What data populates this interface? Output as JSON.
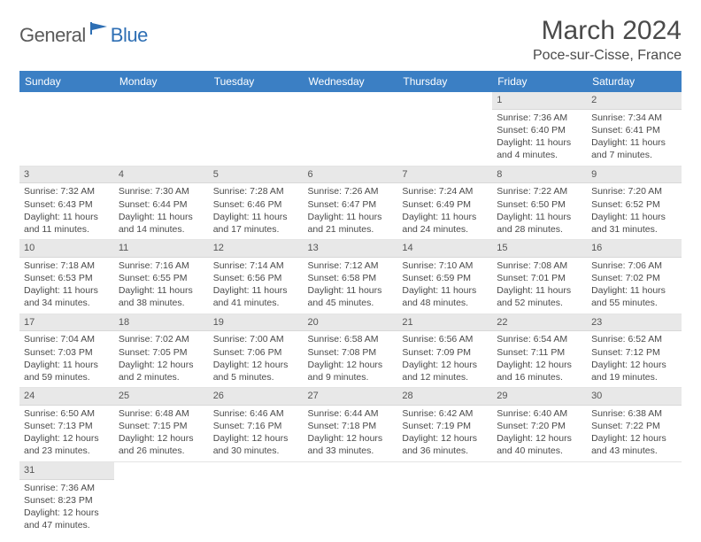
{
  "brand": {
    "part1": "General",
    "part2": "Blue",
    "icon_color": "#2e6fb4"
  },
  "title": "March 2024",
  "location": "Poce-sur-Cisse, France",
  "colors": {
    "header_bg": "#3b7fc4",
    "header_text": "#ffffff",
    "daynum_bg": "#e8e8e8",
    "text": "#4a4a4a",
    "page_bg": "#ffffff"
  },
  "typography": {
    "title_fontsize": 30,
    "location_fontsize": 16,
    "dayhead_fontsize": 12,
    "cell_fontsize": 10.5
  },
  "day_headers": [
    "Sunday",
    "Monday",
    "Tuesday",
    "Wednesday",
    "Thursday",
    "Friday",
    "Saturday"
  ],
  "weeks": [
    [
      null,
      null,
      null,
      null,
      null,
      {
        "n": "1",
        "sr": "Sunrise: 7:36 AM",
        "ss": "Sunset: 6:40 PM",
        "dl": "Daylight: 11 hours and 4 minutes."
      },
      {
        "n": "2",
        "sr": "Sunrise: 7:34 AM",
        "ss": "Sunset: 6:41 PM",
        "dl": "Daylight: 11 hours and 7 minutes."
      }
    ],
    [
      {
        "n": "3",
        "sr": "Sunrise: 7:32 AM",
        "ss": "Sunset: 6:43 PM",
        "dl": "Daylight: 11 hours and 11 minutes."
      },
      {
        "n": "4",
        "sr": "Sunrise: 7:30 AM",
        "ss": "Sunset: 6:44 PM",
        "dl": "Daylight: 11 hours and 14 minutes."
      },
      {
        "n": "5",
        "sr": "Sunrise: 7:28 AM",
        "ss": "Sunset: 6:46 PM",
        "dl": "Daylight: 11 hours and 17 minutes."
      },
      {
        "n": "6",
        "sr": "Sunrise: 7:26 AM",
        "ss": "Sunset: 6:47 PM",
        "dl": "Daylight: 11 hours and 21 minutes."
      },
      {
        "n": "7",
        "sr": "Sunrise: 7:24 AM",
        "ss": "Sunset: 6:49 PM",
        "dl": "Daylight: 11 hours and 24 minutes."
      },
      {
        "n": "8",
        "sr": "Sunrise: 7:22 AM",
        "ss": "Sunset: 6:50 PM",
        "dl": "Daylight: 11 hours and 28 minutes."
      },
      {
        "n": "9",
        "sr": "Sunrise: 7:20 AM",
        "ss": "Sunset: 6:52 PM",
        "dl": "Daylight: 11 hours and 31 minutes."
      }
    ],
    [
      {
        "n": "10",
        "sr": "Sunrise: 7:18 AM",
        "ss": "Sunset: 6:53 PM",
        "dl": "Daylight: 11 hours and 34 minutes."
      },
      {
        "n": "11",
        "sr": "Sunrise: 7:16 AM",
        "ss": "Sunset: 6:55 PM",
        "dl": "Daylight: 11 hours and 38 minutes."
      },
      {
        "n": "12",
        "sr": "Sunrise: 7:14 AM",
        "ss": "Sunset: 6:56 PM",
        "dl": "Daylight: 11 hours and 41 minutes."
      },
      {
        "n": "13",
        "sr": "Sunrise: 7:12 AM",
        "ss": "Sunset: 6:58 PM",
        "dl": "Daylight: 11 hours and 45 minutes."
      },
      {
        "n": "14",
        "sr": "Sunrise: 7:10 AM",
        "ss": "Sunset: 6:59 PM",
        "dl": "Daylight: 11 hours and 48 minutes."
      },
      {
        "n": "15",
        "sr": "Sunrise: 7:08 AM",
        "ss": "Sunset: 7:01 PM",
        "dl": "Daylight: 11 hours and 52 minutes."
      },
      {
        "n": "16",
        "sr": "Sunrise: 7:06 AM",
        "ss": "Sunset: 7:02 PM",
        "dl": "Daylight: 11 hours and 55 minutes."
      }
    ],
    [
      {
        "n": "17",
        "sr": "Sunrise: 7:04 AM",
        "ss": "Sunset: 7:03 PM",
        "dl": "Daylight: 11 hours and 59 minutes."
      },
      {
        "n": "18",
        "sr": "Sunrise: 7:02 AM",
        "ss": "Sunset: 7:05 PM",
        "dl": "Daylight: 12 hours and 2 minutes."
      },
      {
        "n": "19",
        "sr": "Sunrise: 7:00 AM",
        "ss": "Sunset: 7:06 PM",
        "dl": "Daylight: 12 hours and 5 minutes."
      },
      {
        "n": "20",
        "sr": "Sunrise: 6:58 AM",
        "ss": "Sunset: 7:08 PM",
        "dl": "Daylight: 12 hours and 9 minutes."
      },
      {
        "n": "21",
        "sr": "Sunrise: 6:56 AM",
        "ss": "Sunset: 7:09 PM",
        "dl": "Daylight: 12 hours and 12 minutes."
      },
      {
        "n": "22",
        "sr": "Sunrise: 6:54 AM",
        "ss": "Sunset: 7:11 PM",
        "dl": "Daylight: 12 hours and 16 minutes."
      },
      {
        "n": "23",
        "sr": "Sunrise: 6:52 AM",
        "ss": "Sunset: 7:12 PM",
        "dl": "Daylight: 12 hours and 19 minutes."
      }
    ],
    [
      {
        "n": "24",
        "sr": "Sunrise: 6:50 AM",
        "ss": "Sunset: 7:13 PM",
        "dl": "Daylight: 12 hours and 23 minutes."
      },
      {
        "n": "25",
        "sr": "Sunrise: 6:48 AM",
        "ss": "Sunset: 7:15 PM",
        "dl": "Daylight: 12 hours and 26 minutes."
      },
      {
        "n": "26",
        "sr": "Sunrise: 6:46 AM",
        "ss": "Sunset: 7:16 PM",
        "dl": "Daylight: 12 hours and 30 minutes."
      },
      {
        "n": "27",
        "sr": "Sunrise: 6:44 AM",
        "ss": "Sunset: 7:18 PM",
        "dl": "Daylight: 12 hours and 33 minutes."
      },
      {
        "n": "28",
        "sr": "Sunrise: 6:42 AM",
        "ss": "Sunset: 7:19 PM",
        "dl": "Daylight: 12 hours and 36 minutes."
      },
      {
        "n": "29",
        "sr": "Sunrise: 6:40 AM",
        "ss": "Sunset: 7:20 PM",
        "dl": "Daylight: 12 hours and 40 minutes."
      },
      {
        "n": "30",
        "sr": "Sunrise: 6:38 AM",
        "ss": "Sunset: 7:22 PM",
        "dl": "Daylight: 12 hours and 43 minutes."
      }
    ],
    [
      {
        "n": "31",
        "sr": "Sunrise: 7:36 AM",
        "ss": "Sunset: 8:23 PM",
        "dl": "Daylight: 12 hours and 47 minutes."
      },
      null,
      null,
      null,
      null,
      null,
      null
    ]
  ]
}
